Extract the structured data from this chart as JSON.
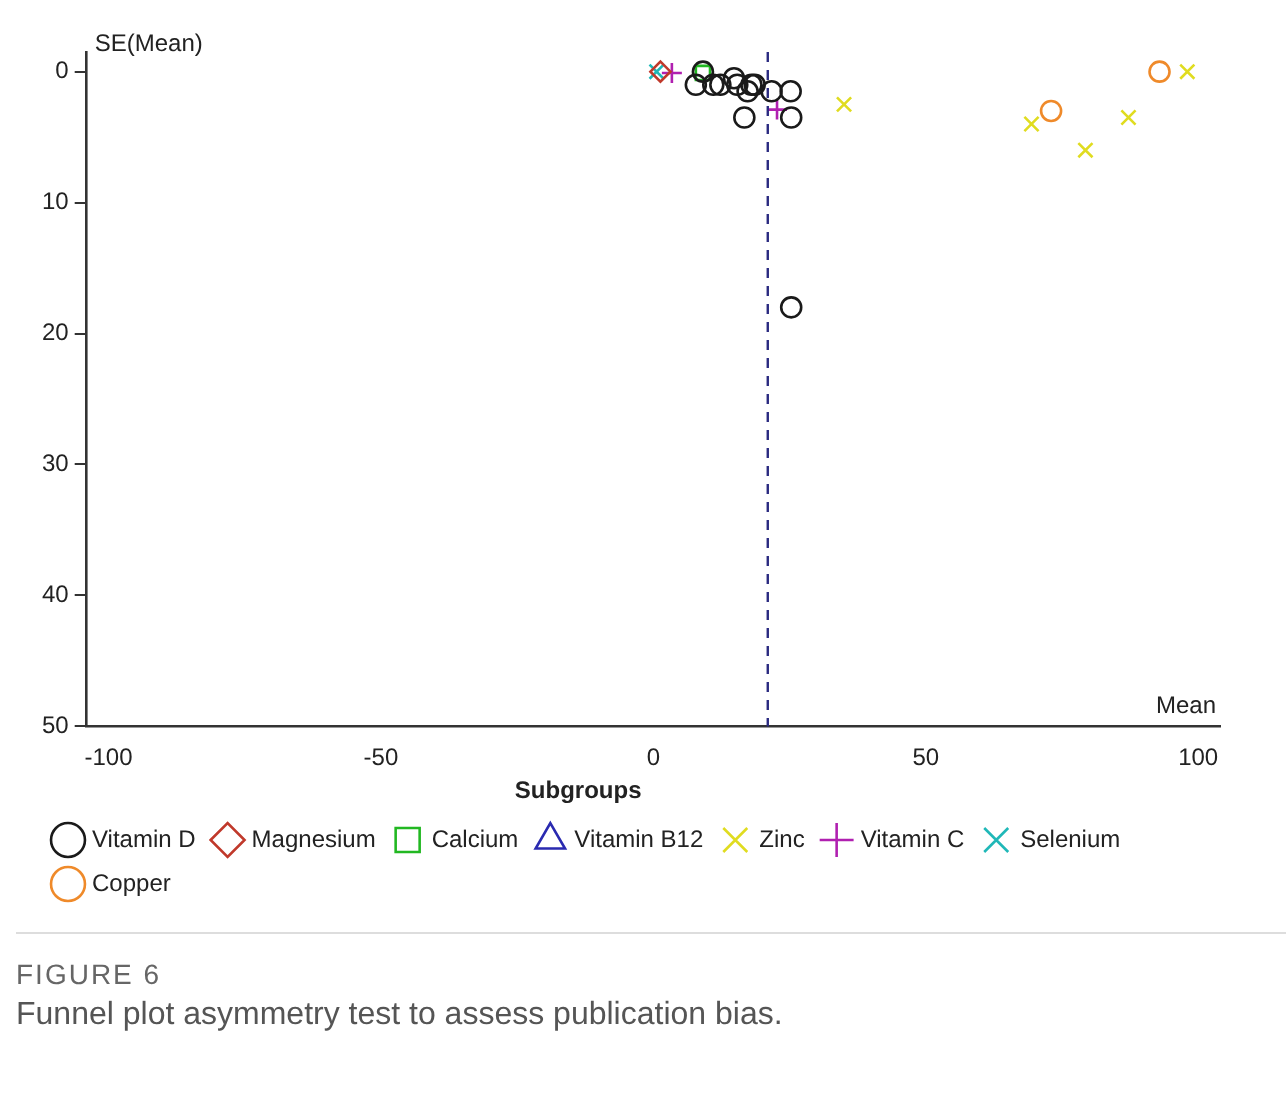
{
  "chart_data": {
    "type": "scatter",
    "xlabel": "Mean",
    "ylabel": "SE(Mean)",
    "legend_title": "Subgroups",
    "legend": "bottom",
    "grid": false,
    "xlim": [
      -104,
      104
    ],
    "xticks": [
      -100,
      -50,
      0,
      50,
      100
    ],
    "ylim": [
      50,
      -1.5
    ],
    "yticks": [
      0,
      10,
      20,
      30,
      40,
      50
    ],
    "series": [
      {
        "name": "Vitamin D",
        "color": "#1a1a1a",
        "marker": "circle",
        "x": [
          7.8,
          9.1,
          11,
          12.3,
          14.8,
          15.4,
          17.3,
          18,
          18.6,
          21.7,
          25.2,
          16.7,
          25.3,
          25.3
        ],
        "values": [
          1,
          0,
          1,
          1,
          0.5,
          1,
          1.5,
          1,
          1,
          1.5,
          1.5,
          3.5,
          3.5,
          18
        ]
      },
      {
        "name": "Magnesium",
        "color": "#c0392b",
        "marker": "diamond",
        "x": [
          1.3
        ],
        "values": [
          0
        ]
      },
      {
        "name": "Calcium",
        "color": "#22b822",
        "marker": "square",
        "x": [
          9.1
        ],
        "values": [
          0.1
        ]
      },
      {
        "name": "Vitamin B12",
        "color": "#2a2ab0",
        "marker": "triangle"
      },
      {
        "name": "Zinc",
        "color": "#e0dc20",
        "marker": "cross",
        "x": [
          35,
          69.4,
          79.3,
          87.2,
          98
        ],
        "values": [
          2.5,
          4,
          6,
          3.5,
          0
        ]
      },
      {
        "name": "Vitamin C",
        "color": "#b020b0",
        "marker": "plus",
        "x": [
          3.4,
          22.7
        ],
        "values": [
          0.1,
          2.9
        ]
      },
      {
        "name": "Selenium",
        "color": "#20b8b8",
        "marker": "cross",
        "x": [
          0.6
        ],
        "values": [
          0
        ]
      },
      {
        "name": "Copper",
        "color": "#ef8a2a",
        "marker": "circle",
        "x": [
          73,
          92.9
        ],
        "values": [
          3,
          0
        ]
      }
    ],
    "ref_lines": [
      {
        "axis": "x",
        "value": 21,
        "color": "#2a2a80",
        "line_style": "dashed"
      }
    ],
    "annotations": [
      "FIGURE 6",
      "Funnel plot asymmetry test to assess publication bias."
    ]
  }
}
